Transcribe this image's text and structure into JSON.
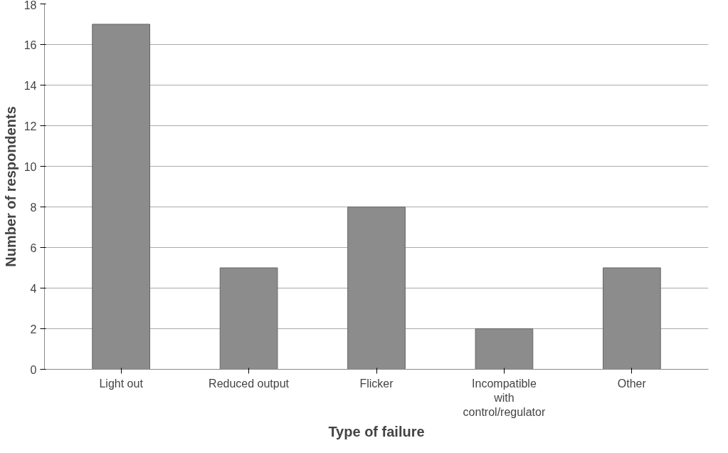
{
  "chart_data": {
    "type": "bar",
    "xlabel": "Type of failure",
    "ylabel": "Number of respondents",
    "categories": [
      "Light out",
      "Reduced output",
      "Flicker",
      "Incompatible with control/regulator",
      "Other"
    ],
    "values": [
      17,
      5,
      8,
      2,
      5
    ],
    "color": "#8c8c8c",
    "ylim": [
      0,
      18
    ],
    "yticks": [
      0,
      2,
      4,
      6,
      8,
      10,
      12,
      14,
      16,
      18
    ],
    "grid": "y"
  }
}
